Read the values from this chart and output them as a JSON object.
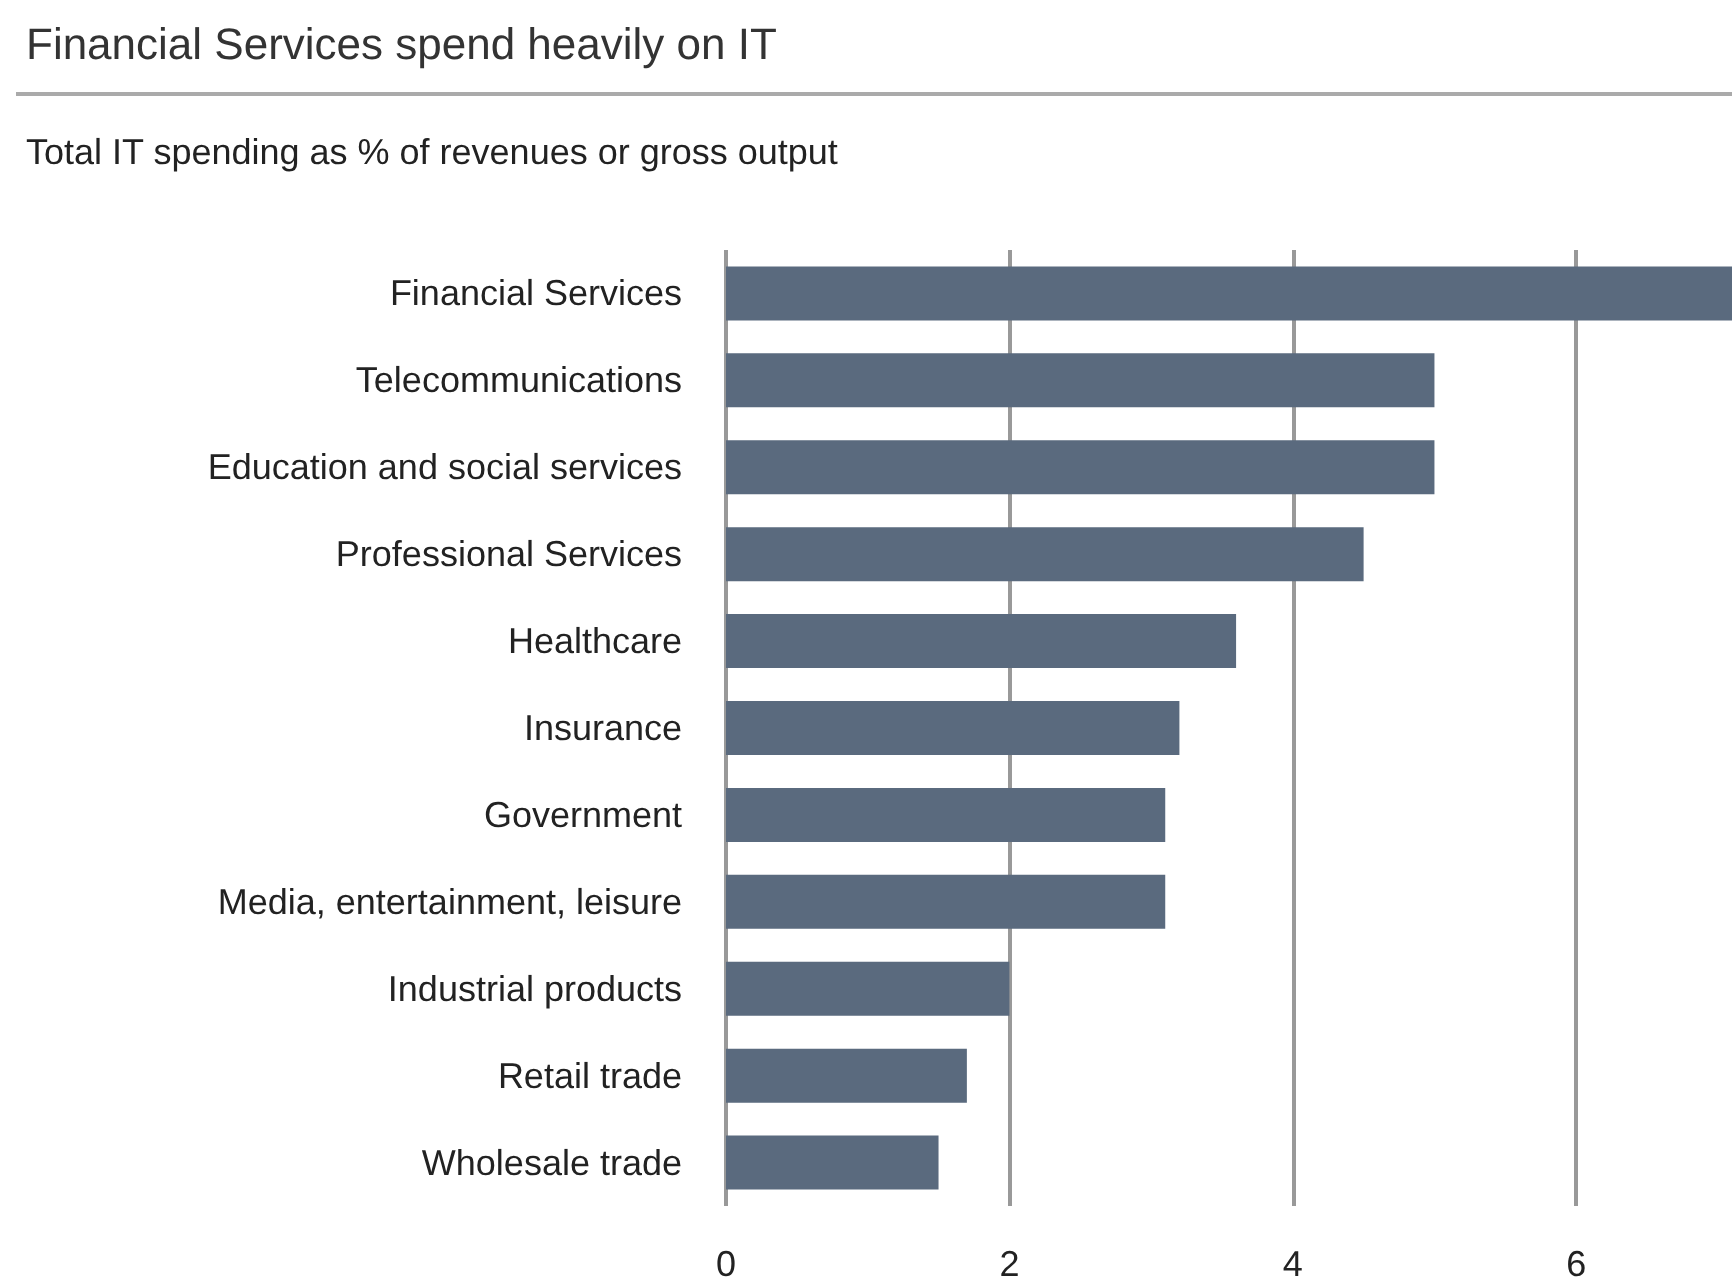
{
  "chart_data": {
    "type": "bar",
    "orientation": "horizontal",
    "title": "Financial Services spend heavily on IT",
    "subtitle": "Total IT spending as % of revenues or gross output",
    "categories": [
      "Financial Services",
      "Telecommunications",
      "Education and social services",
      "Professional Services",
      "Healthcare",
      "Insurance",
      "Government",
      "Media, entertainment, leisure",
      "Industrial products",
      "Retail trade",
      "Wholesale trade"
    ],
    "values": [
      7.1,
      5.0,
      5.0,
      4.5,
      3.6,
      3.2,
      3.1,
      3.1,
      2.0,
      1.7,
      1.5
    ],
    "color": "#5a6a7e",
    "xlim": [
      0,
      7.1
    ],
    "xticks": [
      0,
      2,
      4,
      6
    ],
    "grid": "x"
  }
}
